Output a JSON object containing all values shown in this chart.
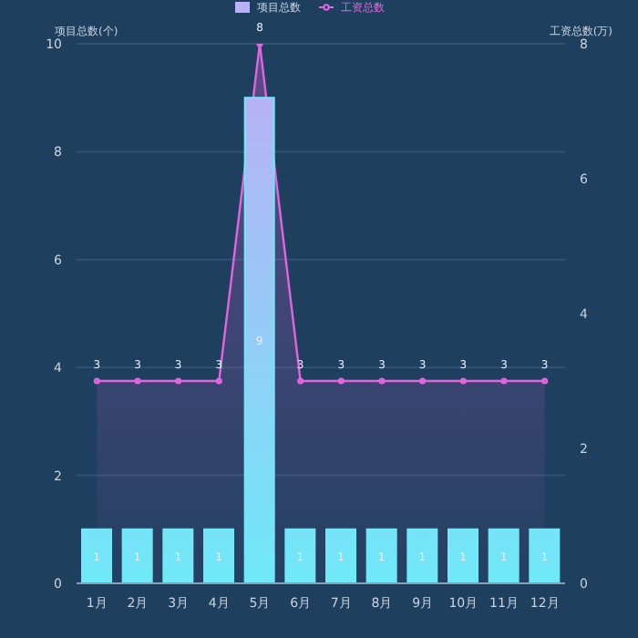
{
  "chart_data": {
    "type": "bar",
    "categories": [
      "1月",
      "2月",
      "3月",
      "4月",
      "5月",
      "6月",
      "7月",
      "8月",
      "9月",
      "10月",
      "11月",
      "12月"
    ],
    "series": [
      {
        "name": "项目总数",
        "color": "#6fe9f8",
        "values": [
          1,
          1,
          1,
          1,
          9,
          1,
          1,
          1,
          1,
          1,
          1,
          1
        ]
      },
      {
        "name": "工资总数",
        "type": "area",
        "axis": "y2",
        "color": "#e066e0",
        "values": [
          3,
          3,
          3,
          3,
          8,
          3,
          3,
          3,
          3,
          3,
          3,
          3
        ]
      }
    ],
    "ylabel": "项目总数(个)",
    "y2label": "工资总数(万)",
    "ylim": [
      0,
      10
    ],
    "yticks": [
      0,
      2,
      4,
      6,
      8,
      10
    ],
    "y2lim": [
      0,
      8
    ],
    "y2ticks": [
      0,
      2,
      4,
      6,
      8
    ],
    "grid": "y",
    "legend": "top",
    "marker": "circle",
    "data_labels": true
  }
}
